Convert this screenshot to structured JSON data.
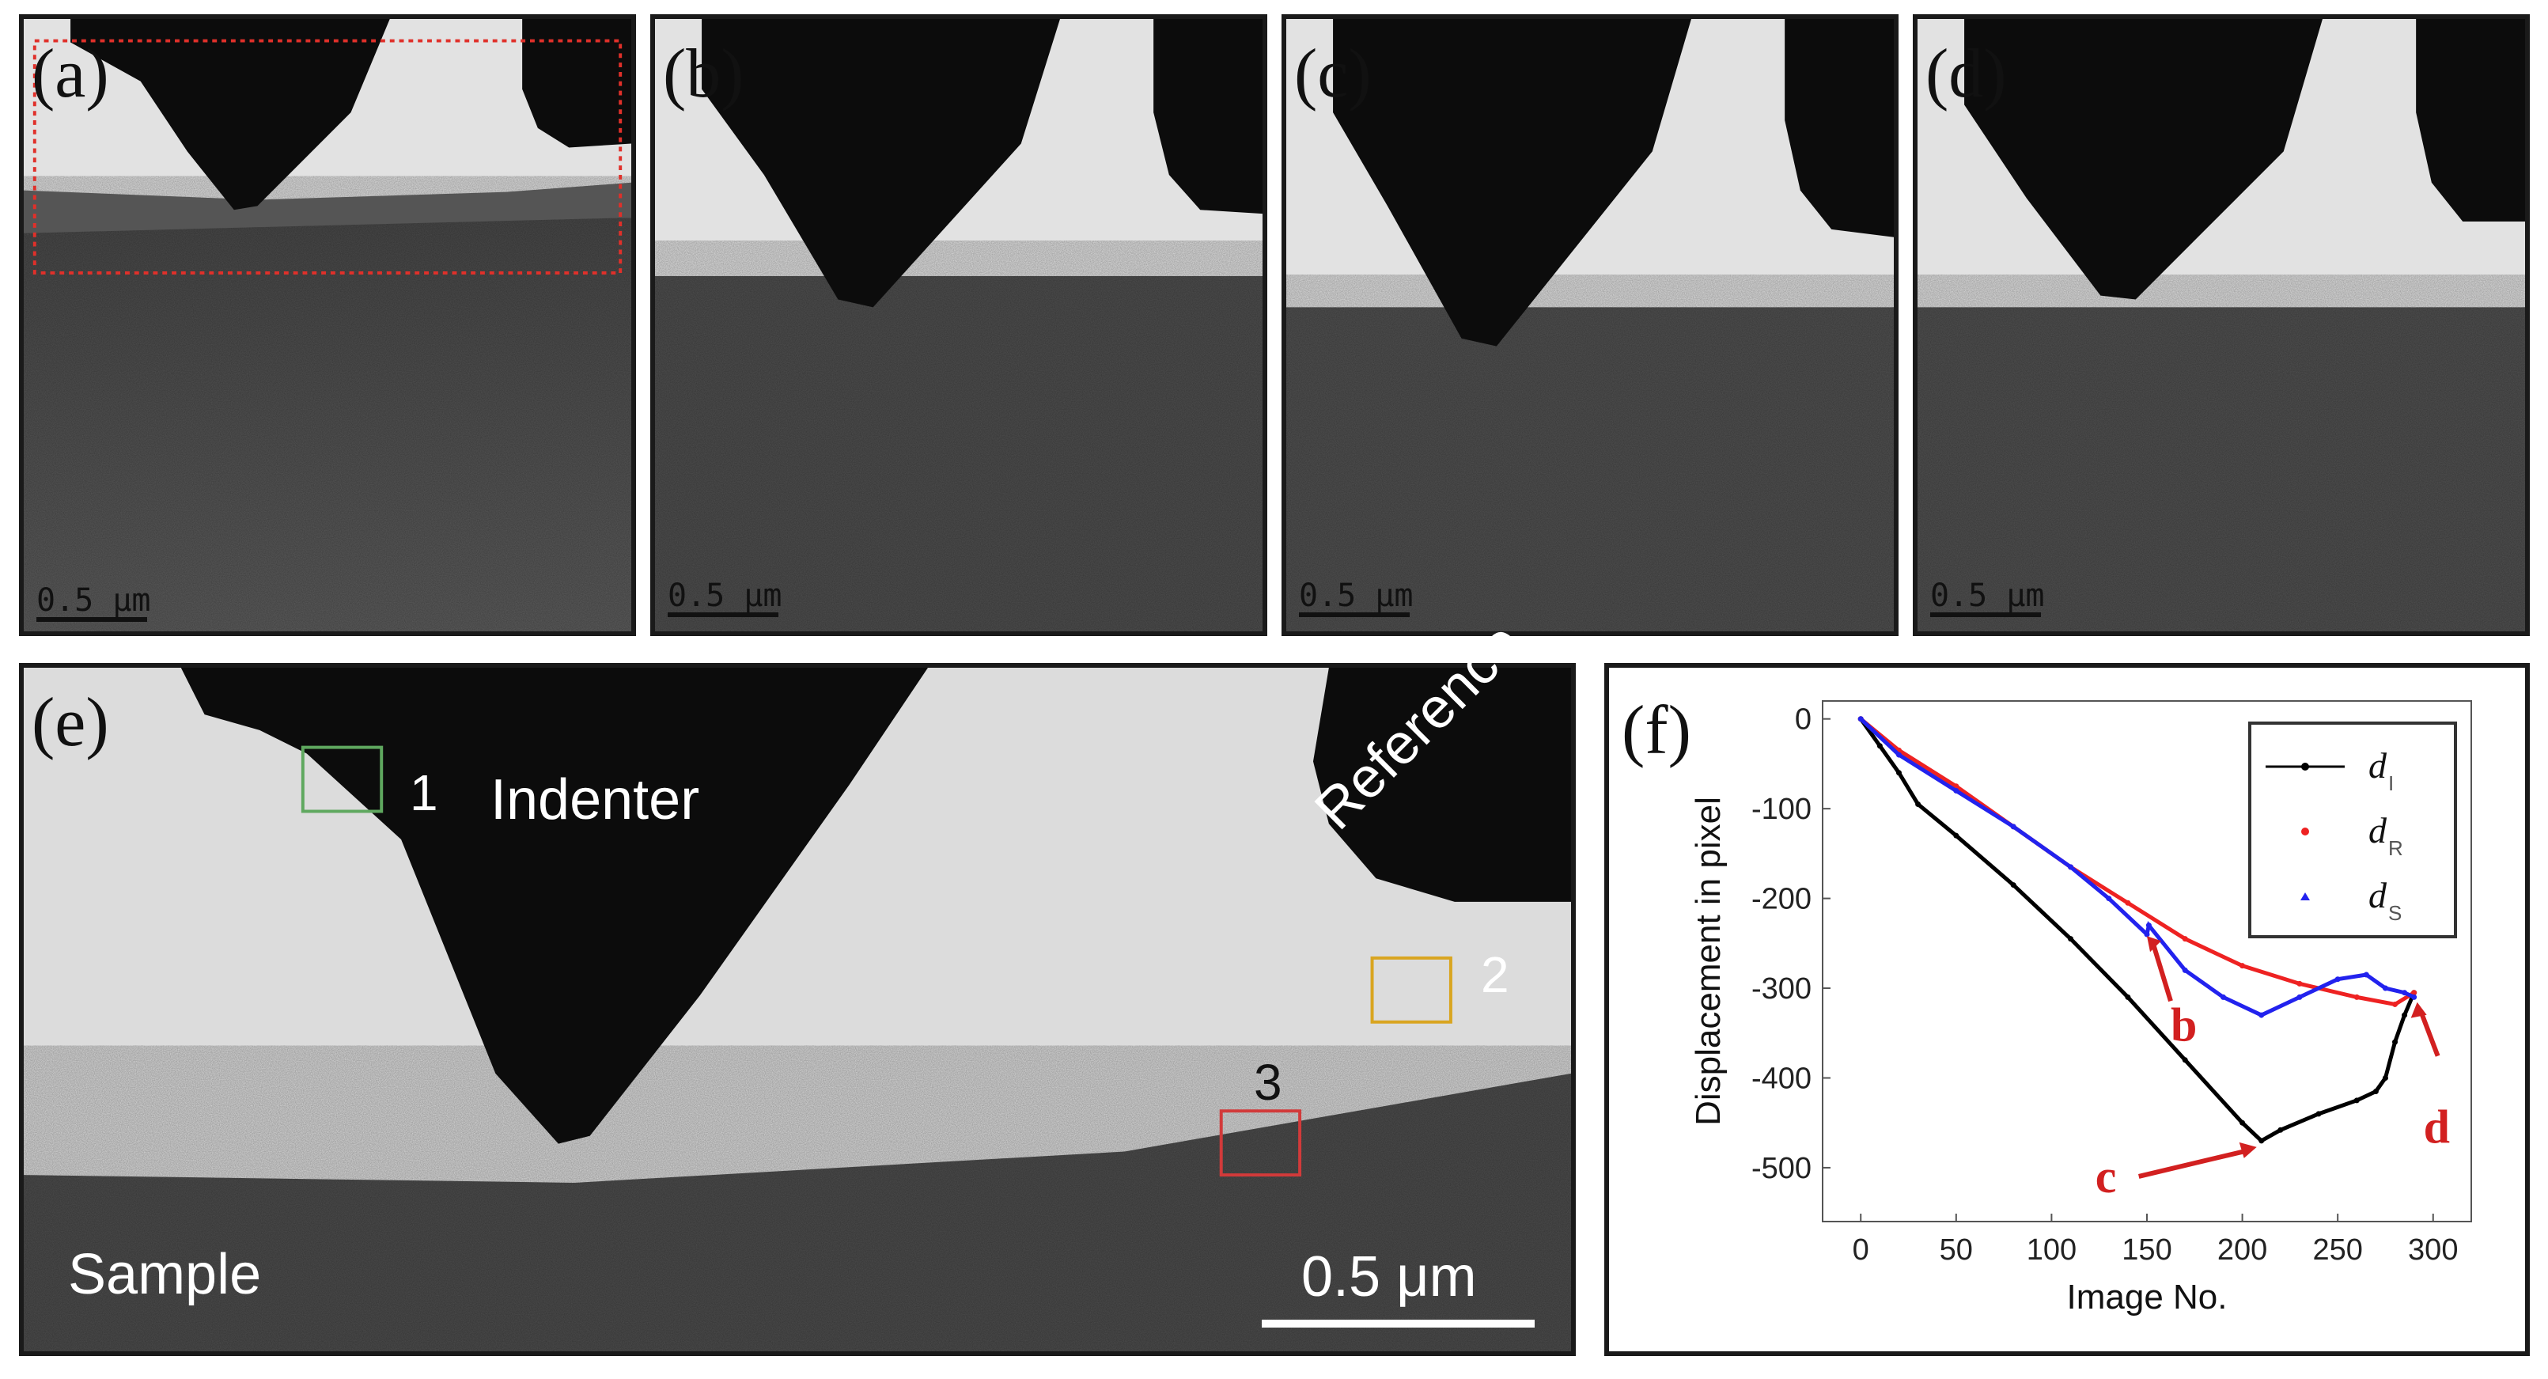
{
  "figure": {
    "panels": [
      {
        "id": "a",
        "label": "(a)",
        "scale": "0.5 μm"
      },
      {
        "id": "b",
        "label": "(b)",
        "scale": "0.5 μm"
      },
      {
        "id": "c",
        "label": "(c)",
        "scale": "0.5 μm"
      },
      {
        "id": "d",
        "label": "(d)",
        "scale": "0.5 μm"
      }
    ],
    "panel_e": {
      "label": "(e)",
      "indenter": "Indenter",
      "reference": "Reference",
      "sample": "Sample",
      "scale": "0.5 μm",
      "box1": "1",
      "box2": "2",
      "box3": "3",
      "colors": {
        "box1": "#5fa85f",
        "box2": "#d9a520",
        "box3": "#d23a3a",
        "roi": "#e0302a"
      }
    },
    "panel_f": {
      "label": "(f)"
    }
  },
  "chart_data": {
    "type": "line",
    "xlabel": "Image No.",
    "ylabel": "Displacement in pixel",
    "xlim": [
      -20,
      320
    ],
    "ylim": [
      -560,
      20
    ],
    "xticks": [
      0,
      50,
      100,
      150,
      200,
      250,
      300
    ],
    "yticks": [
      0,
      -100,
      -200,
      -300,
      -400,
      -500
    ],
    "legend": {
      "placement": "top-right"
    },
    "series": [
      {
        "name": "d_I",
        "label_main": "d",
        "label_sub": "I",
        "color": "#000000",
        "x": [
          0,
          10,
          20,
          30,
          50,
          80,
          110,
          140,
          170,
          200,
          210,
          220,
          240,
          260,
          270,
          275,
          280,
          285,
          290
        ],
        "y": [
          0,
          -30,
          -60,
          -95,
          -130,
          -185,
          -245,
          -310,
          -380,
          -450,
          -470,
          -458,
          -440,
          -425,
          -415,
          -400,
          -360,
          -330,
          -305
        ]
      },
      {
        "name": "d_R",
        "label_main": "d",
        "label_sub": "R",
        "color": "#ee2222",
        "x": [
          0,
          20,
          50,
          80,
          110,
          140,
          170,
          200,
          230,
          260,
          280,
          290
        ],
        "y": [
          0,
          -35,
          -75,
          -120,
          -165,
          -205,
          -245,
          -275,
          -295,
          -310,
          -318,
          -305
        ]
      },
      {
        "name": "d_S",
        "label_main": "d",
        "label_sub": "S",
        "color": "#2222ee",
        "x": [
          0,
          20,
          50,
          80,
          110,
          130,
          150,
          151,
          170,
          190,
          210,
          230,
          250,
          265,
          275,
          285,
          290
        ],
        "y": [
          0,
          -40,
          -80,
          -120,
          -165,
          -200,
          -240,
          -230,
          -280,
          -310,
          -330,
          -310,
          -290,
          -285,
          -300,
          -305,
          -310
        ]
      }
    ],
    "annotations": [
      {
        "text": "b",
        "x": 150,
        "y": -235,
        "color": "#d22020"
      },
      {
        "text": "c",
        "x": 210,
        "y": -470,
        "color": "#d22020"
      },
      {
        "text": "d",
        "x": 290,
        "y": -305,
        "color": "#d22020"
      }
    ]
  }
}
